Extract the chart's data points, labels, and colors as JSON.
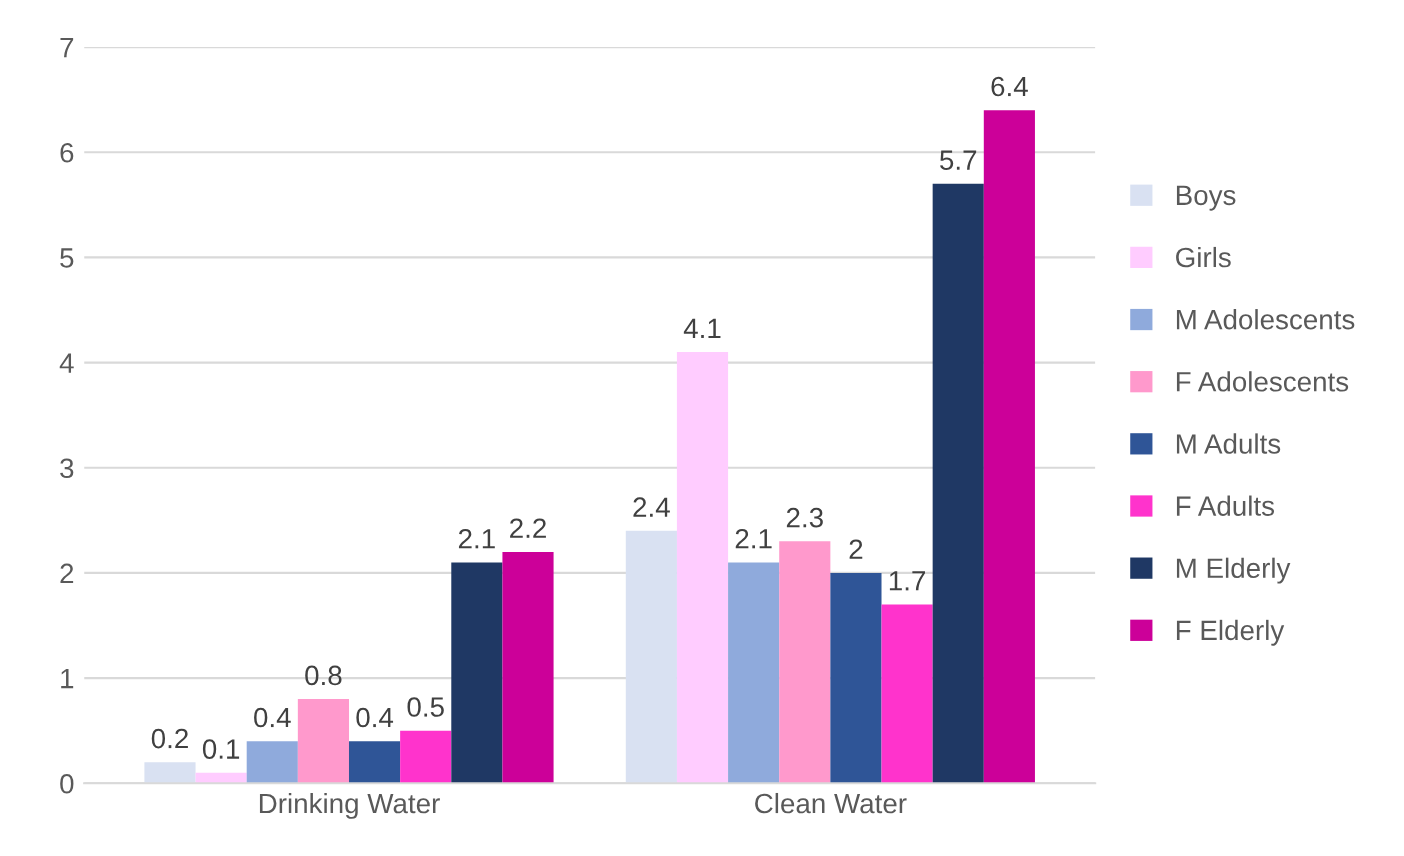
{
  "chart_data": {
    "type": "bar",
    "categories": [
      "Drinking Water",
      "Clean Water"
    ],
    "series": [
      {
        "name": "Boys",
        "color": "#d9e1f2",
        "values": [
          0.2,
          2.4
        ]
      },
      {
        "name": "Girls",
        "color": "#ffccff",
        "values": [
          0.1,
          4.1
        ]
      },
      {
        "name": "M Adolescents",
        "color": "#8faadc",
        "values": [
          0.4,
          2.1
        ]
      },
      {
        "name": "F Adolescents",
        "color": "#ff99cc",
        "values": [
          0.8,
          2.3
        ]
      },
      {
        "name": "M Adults",
        "color": "#2f5597",
        "values": [
          0.4,
          2
        ]
      },
      {
        "name": "F Adults",
        "color": "#ff33cc",
        "values": [
          0.5,
          1.7
        ]
      },
      {
        "name": "M Elderly",
        "color": "#1f3864",
        "values": [
          2.1,
          5.7
        ]
      },
      {
        "name": "F Elderly",
        "color": "#cc0099",
        "values": [
          2.2,
          6.4
        ]
      }
    ],
    "ylim": [
      0,
      7
    ],
    "yticks": [
      0,
      1,
      2,
      3,
      4,
      5,
      6,
      7
    ],
    "grid": "y",
    "legend": "right",
    "data_labels": true
  }
}
